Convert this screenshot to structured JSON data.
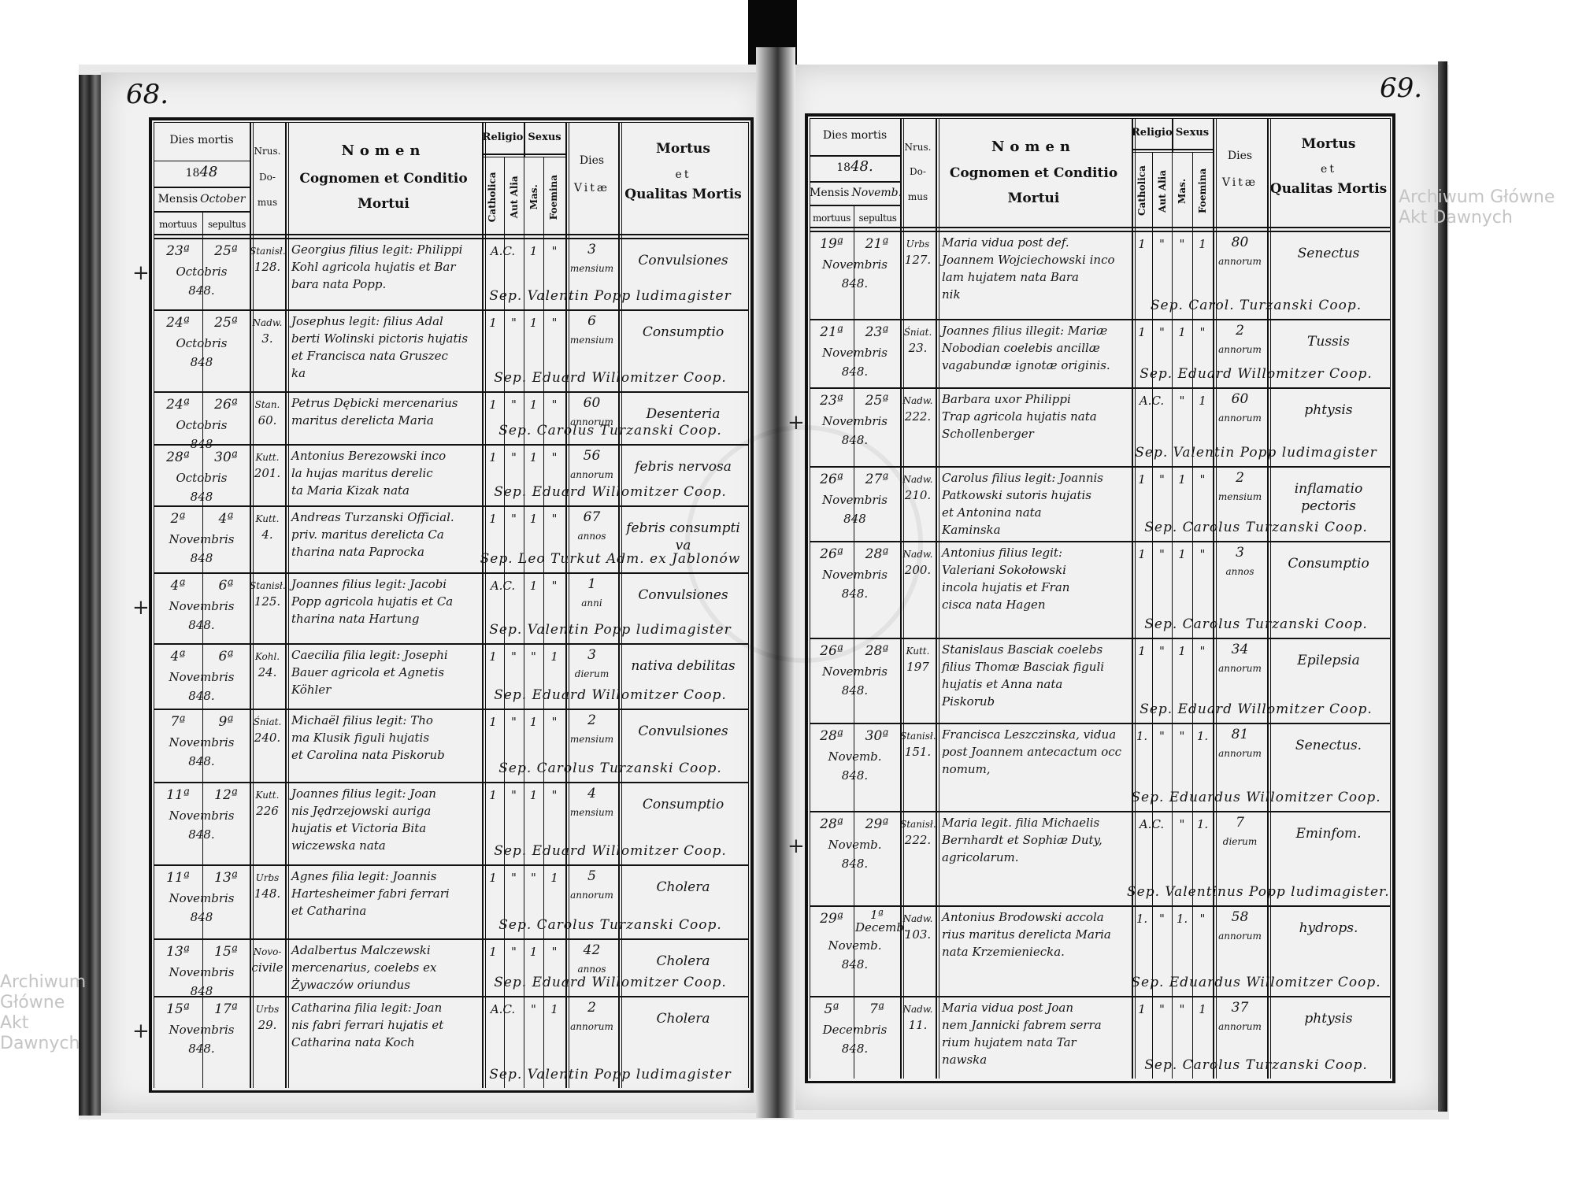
{
  "watermark": "Archiwum Główne Akt Dawnych",
  "header": {
    "dies_mortis": "Dies mortis",
    "year_printed": "18",
    "mensis": "Mensis",
    "mortuus": "mortuus",
    "sepultus": "sepultus",
    "nrus": "Nrus.",
    "do": "Do-",
    "mus": "mus",
    "nomen": "Nomen",
    "cognomen": "Cognomen et Conditio",
    "mortui": "Mortui",
    "religio": "Religio",
    "catholica": "Catholica",
    "aut_alia": "Aut Alia",
    "sexus": "Sexus",
    "mas": "Mas.",
    "foemina": "Foemina",
    "dies": "Dies",
    "vitae": "Vitæ",
    "mortus": "Mortus",
    "et": "et",
    "qualitas": "Qualitas Mortis"
  },
  "pages": [
    {
      "page_number": "68.",
      "year_hand": "48",
      "month_hand": "October",
      "rows": [
        {
          "cross": true,
          "md": "23ª",
          "sd": "25ª",
          "month": "Octobris",
          "year": "848.",
          "street": "Stanisł.",
          "no": "128.",
          "name": [
            "Georgius filius legit: Philippi",
            "Kohl agricola hujatis et Bar",
            "bara nata Popp."
          ],
          "cat": "A.C.",
          "alia": "",
          "mas": "1",
          "foem": "\"",
          "vn": "3",
          "vu": "mensium",
          "causa": [
            "Convulsiones"
          ],
          "sep": "Sep. Valentin Popp ludimagister"
        },
        {
          "cross": false,
          "md": "24ª",
          "sd": "25ª",
          "month": "Octobris",
          "year": "848",
          "street": "Nadw.",
          "no": "3.",
          "name": [
            "Josephus legit: filius Adal",
            "berti Wolinski pictoris hujatis",
            "et Francisca nata Gruszec",
            "ka"
          ],
          "cat": "1",
          "alia": "\"",
          "mas": "1",
          "foem": "\"",
          "vn": "6",
          "vu": "mensium",
          "causa": [
            "Consumptio"
          ],
          "sep": "Sep. Eduard Willomitzer Coop."
        },
        {
          "cross": false,
          "md": "24ª",
          "sd": "26ª",
          "month": "Octobris",
          "year": "848",
          "street": "Stan.",
          "no": "60.",
          "name": [
            "Petrus Dębicki mercenarius",
            "maritus derelicta Maria"
          ],
          "cat": "1",
          "alia": "\"",
          "mas": "1",
          "foem": "\"",
          "vn": "60",
          "vu": "annorum",
          "causa": [
            "Desenteria"
          ],
          "sep": "Sep. Carolus Turzanski Coop."
        },
        {
          "cross": false,
          "md": "28ª",
          "sd": "30ª",
          "month": "Octobris",
          "year": "848",
          "street": "Kutt.",
          "no": "201.",
          "name": [
            "Antonius Berezowski inco",
            "la hujas maritus derelic",
            "ta Maria Kizak nata"
          ],
          "cat": "1",
          "alia": "\"",
          "mas": "1",
          "foem": "\"",
          "vn": "56",
          "vu": "annorum",
          "causa": [
            "febris nervosa"
          ],
          "sep": "Sep. Eduard Willomitzer Coop."
        },
        {
          "cross": false,
          "md": "2ª",
          "sd": "4ª",
          "month": "Novembris",
          "year": "848",
          "street": "Kutt.",
          "no": "4.",
          "name": [
            "Andreas Turzanski Official.",
            "priv. maritus derelicta Ca",
            "tharina nata Paprocka"
          ],
          "cat": "1",
          "alia": "\"",
          "mas": "1",
          "foem": "\"",
          "vn": "67",
          "vu": "annos",
          "causa": [
            "febris consumpti",
            "va"
          ],
          "sep": "Sep. Leo Turkut Adm. ex Jablonów"
        },
        {
          "cross": true,
          "md": "4ª",
          "sd": "6ª",
          "month": "Novembris",
          "year": "848.",
          "street": "Stanisł.",
          "no": "125.",
          "name": [
            "Joannes filius legit: Jacobi",
            "Popp agricola hujatis et Ca",
            "tharina nata Hartung"
          ],
          "cat": "A.C.",
          "alia": "",
          "mas": "1",
          "foem": "\"",
          "vn": "1",
          "vu": "anni",
          "causa": [
            "Convulsiones"
          ],
          "sep": "Sep. Valentin Popp ludimagister"
        },
        {
          "cross": false,
          "md": "4ª",
          "sd": "6ª",
          "month": "Novembris",
          "year": "848.",
          "street": "Kohl.",
          "no": "24.",
          "name": [
            "Caecilia filia legit: Josephi",
            "Bauer agricola et Agnetis",
            "Köhler"
          ],
          "cat": "1",
          "alia": "\"",
          "mas": "\"",
          "foem": "1",
          "vn": "3",
          "vu": "dierum",
          "causa": [
            "nativa debilitas"
          ],
          "sep": "Sep. Eduard Willomitzer Coop."
        },
        {
          "cross": false,
          "md": "7ª",
          "sd": "9ª",
          "month": "Novembris",
          "year": "848.",
          "street": "Śniat.",
          "no": "240.",
          "name": [
            "Michaël filius legit: Tho",
            "ma Klusik figuli hujatis",
            "et Carolina nata Piskorub"
          ],
          "cat": "1",
          "alia": "\"",
          "mas": "1",
          "foem": "\"",
          "vn": "2",
          "vu": "mensium",
          "causa": [
            "Convulsiones"
          ],
          "sep": "Sep. Carolus Turzanski Coop."
        },
        {
          "cross": false,
          "md": "11ª",
          "sd": "12ª",
          "month": "Novembris",
          "year": "848.",
          "street": "Kutt.",
          "no": "226",
          "name": [
            "Joannes filius legit: Joan",
            "nis Jędrzejowski auriga",
            "hujatis et Victoria Bita",
            "wiczewska nata"
          ],
          "cat": "1",
          "alia": "\"",
          "mas": "1",
          "foem": "\"",
          "vn": "4",
          "vu": "mensium",
          "causa": [
            "Consumptio"
          ],
          "sep": "Sep. Eduard Willomitzer Coop."
        },
        {
          "cross": false,
          "md": "11ª",
          "sd": "13ª",
          "month": "Novembris",
          "year": "848",
          "street": "Urbs",
          "no": "148.",
          "name": [
            "Agnes filia legit: Joannis",
            "Hartesheimer fabri ferrari",
            "et Catharina"
          ],
          "cat": "1",
          "alia": "\"",
          "mas": "\"",
          "foem": "1",
          "vn": "5",
          "vu": "annorum",
          "causa": [
            "Cholera"
          ],
          "sep": "Sep. Carolus Turzanski Coop."
        },
        {
          "cross": false,
          "md": "13ª",
          "sd": "15ª",
          "month": "Novembris",
          "year": "848",
          "street": "Novo-",
          "no": "civile",
          "name": [
            "Adalbertus Malczewski",
            "mercenarius, coelebs ex",
            "Żywaczów oriundus"
          ],
          "cat": "1",
          "alia": "\"",
          "mas": "1",
          "foem": "\"",
          "vn": "42",
          "vu": "annos",
          "causa": [
            "Cholera"
          ],
          "sep": "Sep. Eduard Willomitzer Coop."
        },
        {
          "cross": true,
          "md": "15ª",
          "sd": "17ª",
          "month": "Novembris",
          "year": "848.",
          "street": "Urbs",
          "no": "29.",
          "name": [
            "Catharina filia legit: Joan",
            "nis fabri ferrari hujatis et",
            "Catharina nata Koch"
          ],
          "cat": "A.C.",
          "alia": "",
          "mas": "\"",
          "foem": "1",
          "vn": "2",
          "vu": "annorum",
          "causa": [
            "Cholera"
          ],
          "sep": "Sep. Valentin Popp ludimagister"
        }
      ]
    },
    {
      "page_number": "69.",
      "year_hand": "48.",
      "month_hand": "Novemb.",
      "rows": [
        {
          "cross": false,
          "md": "19ª",
          "sd": "21ª",
          "month": "Novembris",
          "year": "848.",
          "street": "Urbs",
          "no": "127.",
          "name": [
            "Maria vidua post def.",
            "Joannem Wojciechowski inco",
            "lam hujatem nata Bara",
            "nik"
          ],
          "cat": "1",
          "alia": "\"",
          "mas": "\"",
          "foem": "1",
          "vn": "80",
          "vu": "annorum",
          "causa": [
            "Senectus"
          ],
          "sep": "Sep. Carol. Turzanski Coop."
        },
        {
          "cross": false,
          "md": "21ª",
          "sd": "23ª",
          "month": "Novembris",
          "year": "848.",
          "street": "Śniat.",
          "no": "23.",
          "name": [
            "Joannes filius illegit: Mariæ",
            "Nobodian coelebis ancillæ",
            "vagabundæ ignotæ originis."
          ],
          "cat": "1",
          "alia": "\"",
          "mas": "1",
          "foem": "\"",
          "vn": "2",
          "vu": "annorum",
          "causa": [
            "Tussis"
          ],
          "sep": "Sep. Eduard Willomitzer Coop."
        },
        {
          "cross": true,
          "md": "23ª",
          "sd": "25ª",
          "month": "Novembris",
          "year": "848.",
          "street": "Nadw.",
          "no": "222.",
          "name": [
            "Barbara uxor Philippi",
            "Trap agricola hujatis nata",
            "Schollenberger"
          ],
          "cat": "A.C.",
          "alia": "",
          "mas": "\"",
          "foem": "1",
          "vn": "60",
          "vu": "annorum",
          "causa": [
            "phtysis"
          ],
          "sep": "Sep. Valentin Popp ludimagister"
        },
        {
          "cross": false,
          "md": "26ª",
          "sd": "27ª",
          "month": "Novembris",
          "year": "848",
          "street": "Nadw.",
          "no": "210.",
          "name": [
            "Carolus filius legit: Joannis",
            "Patkowski sutoris hujatis",
            "et Antonina nata",
            "Kaminska"
          ],
          "cat": "1",
          "alia": "\"",
          "mas": "1",
          "foem": "\"",
          "vn": "2",
          "vu": "mensium",
          "causa": [
            "inflamatio",
            "pectoris"
          ],
          "sep": "Sep. Carolus Turzanski Coop."
        },
        {
          "cross": false,
          "md": "26ª",
          "sd": "28ª",
          "month": "Novembris",
          "year": "848.",
          "street": "Nadw.",
          "no": "200.",
          "name": [
            "Antonius filius legit:",
            "Valeriani Sokołowski",
            "incola hujatis et Fran",
            "cisca nata Hagen"
          ],
          "cat": "1",
          "alia": "\"",
          "mas": "1",
          "foem": "\"",
          "vn": "3",
          "vu": "annos",
          "causa": [
            "Consumptio"
          ],
          "sep": "Sep. Carolus Turzanski Coop."
        },
        {
          "cross": false,
          "md": "26ª",
          "sd": "28ª",
          "month": "Novembris",
          "year": "848.",
          "street": "Kutt.",
          "no": "197",
          "name": [
            "Stanislaus Basciak coelebs",
            "filius Thomæ Basciak figuli",
            "hujatis et Anna nata",
            "Piskorub"
          ],
          "cat": "1",
          "alia": "\"",
          "mas": "1",
          "foem": "\"",
          "vn": "34",
          "vu": "annorum",
          "causa": [
            "Epilepsia"
          ],
          "sep": "Sep. Eduard Willomitzer Coop."
        },
        {
          "cross": false,
          "md": "28ª",
          "sd": "30ª",
          "month": "Novemb.",
          "year": "848.",
          "street": "Stanisł.",
          "no": "151.",
          "name": [
            "Francisca Leszczinska, vidua",
            "post Joannem antecactum occ",
            "nomum,"
          ],
          "cat": "1.",
          "alia": "\"",
          "mas": "\"",
          "foem": "1.",
          "vn": "81",
          "vu": "annorum",
          "causa": [
            "Senectus."
          ],
          "sep": "Sep. Eduardus Willomitzer Coop."
        },
        {
          "cross": true,
          "md": "28ª",
          "sd": "29ª",
          "month": "Novemb.",
          "year": "848.",
          "street": "Stanisł.",
          "no": "222.",
          "name": [
            "Maria legit. filia Michaelis",
            "Bernhardt et Sophiæ Duty,",
            "agricolarum."
          ],
          "cat": "A.C.",
          "alia": "",
          "mas": "\"",
          "foem": "1.",
          "vn": "7",
          "vu": "dierum",
          "causa": [
            "Eminfom."
          ],
          "sep": "Sep. Valentinus Popp ludimagister."
        },
        {
          "cross": false,
          "md": "29ª",
          "sd": "1ª Decemb.",
          "month": "Novemb.",
          "year": "848.",
          "street": "Nadw.",
          "no": "103.",
          "name": [
            "Antonius Brodowski accola",
            "rius maritus derelicta Maria",
            "nata Krzemieniecka."
          ],
          "cat": "1.",
          "alia": "\"",
          "mas": "1.",
          "foem": "\"",
          "vn": "58",
          "vu": "annorum",
          "causa": [
            "hydrops."
          ],
          "sep": "Sep. Eduardus Willomitzer Coop."
        },
        {
          "cross": false,
          "md": "5ª",
          "sd": "7ª",
          "month": "Decembris",
          "year": "848.",
          "street": "Nadw.",
          "no": "11.",
          "name": [
            "Maria vidua post Joan",
            "nem Jannicki fabrem serra",
            "rium hujatem nata Tar",
            "nawska"
          ],
          "cat": "1",
          "alia": "\"",
          "mas": "\"",
          "foem": "1",
          "vn": "37",
          "vu": "annorum",
          "causa": [
            "phtysis"
          ],
          "sep": "Sep. Carolus Turzanski Coop."
        }
      ]
    }
  ]
}
